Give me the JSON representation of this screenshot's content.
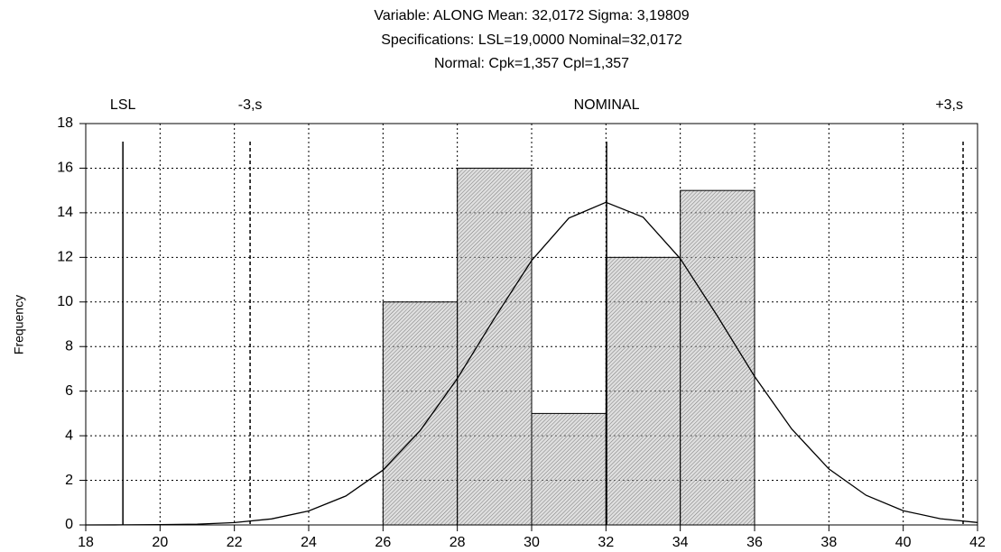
{
  "chart_data": {
    "type": "histogram",
    "title": [
      "Variable: ALONG Mean: 32,0172 Sigma: 3,19809",
      "Specifications: LSL=19,0000 Nominal=32,0172",
      "Normal: Cpk=1,357 Cpl=1,357"
    ],
    "y_label": "Frequency",
    "bins": [
      18,
      20,
      22,
      24,
      26,
      28,
      30,
      32,
      34,
      36,
      38,
      40
    ],
    "values": [
      0,
      0,
      0,
      0,
      10,
      16,
      5,
      12,
      15,
      0,
      0
    ],
    "color": "#b8b8b8",
    "curve": {
      "x": [
        18,
        19,
        20,
        21,
        22,
        23,
        24,
        25,
        26,
        27,
        28,
        29,
        30,
        31,
        32,
        33,
        34,
        35,
        36,
        37,
        38,
        39,
        40,
        41,
        42
      ],
      "values": [
        0.001,
        0.004,
        0.012,
        0.038,
        0.107,
        0.272,
        0.625,
        1.3,
        2.46,
        4.23,
        6.57,
        9.27,
        11.86,
        13.76,
        14.47,
        13.8,
        11.94,
        9.37,
        6.66,
        4.3,
        2.51,
        1.33,
        0.64,
        0.28,
        0.11
      ],
      "color": "#000000"
    },
    "reference_lines": [
      {
        "label": "LSL",
        "value": 19,
        "style": "solid"
      },
      {
        "label": "-3,s",
        "value": 22.4229,
        "style": "dashed"
      },
      {
        "label": "NOMINAL",
        "value": 32.0172,
        "style": "solid"
      },
      {
        "label": "+3,s",
        "value": 41.6115,
        "style": "dashed"
      }
    ],
    "xlim": [
      18,
      42
    ],
    "xticks": [
      18,
      20,
      22,
      24,
      26,
      28,
      30,
      32,
      34,
      36,
      38,
      40,
      42
    ],
    "ylim": [
      0,
      18
    ],
    "yticks": [
      0,
      2,
      4,
      6,
      8,
      10,
      12,
      14,
      16,
      18
    ],
    "grid": true
  }
}
